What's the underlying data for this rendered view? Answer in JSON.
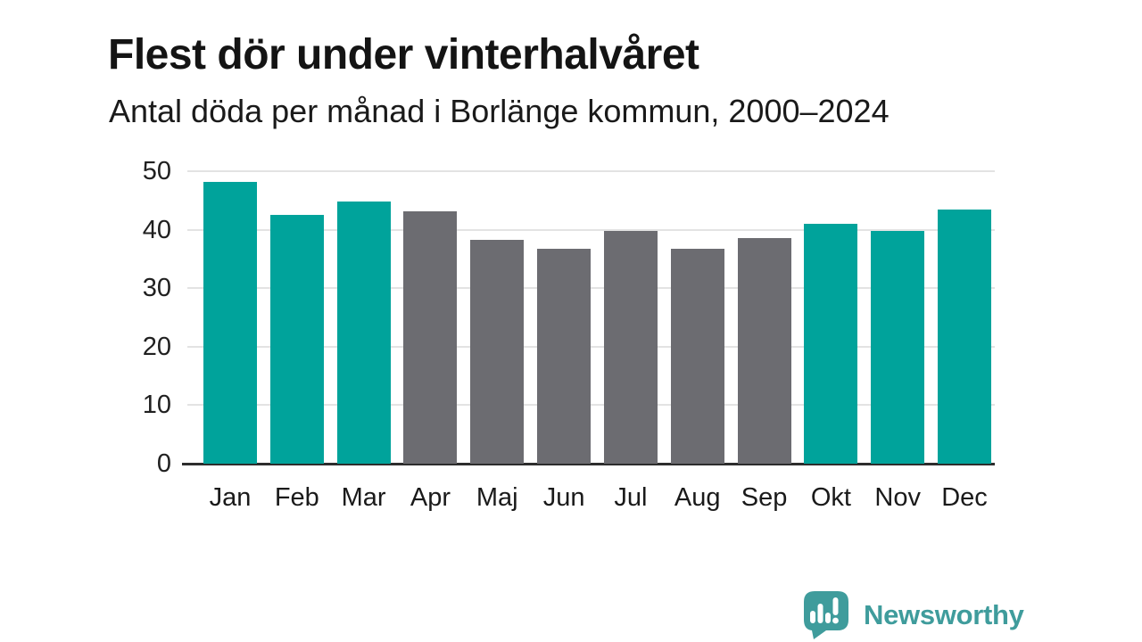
{
  "chart": {
    "title": "Flest dör under vinterhalvåret",
    "subtitle": "Antal döda per månad i Borlänge kommun, 2000–2024"
  },
  "chart_data": {
    "type": "bar",
    "categories": [
      "Jan",
      "Feb",
      "Mar",
      "Apr",
      "Maj",
      "Jun",
      "Jul",
      "Aug",
      "Sep",
      "Okt",
      "Nov",
      "Dec"
    ],
    "values": [
      48.2,
      42.5,
      44.8,
      43.2,
      38.3,
      36.7,
      39.8,
      36.8,
      38.6,
      41.0,
      39.8,
      43.5
    ],
    "bar_color_keys": [
      "teal",
      "teal",
      "teal",
      "gray",
      "gray",
      "gray",
      "gray",
      "gray",
      "gray",
      "teal",
      "teal",
      "teal"
    ],
    "colors": {
      "teal": "#00a39b",
      "gray": "#6c6c71"
    },
    "title": "Flest dör under vinterhalvåret",
    "subtitle": "Antal döda per månad i Borlänge kommun, 2000–2024",
    "xlabel": "",
    "ylabel": "",
    "yticks": [
      0,
      10,
      20,
      30,
      40,
      50
    ],
    "ylim": [
      0,
      50
    ],
    "grid": true,
    "legend": "none"
  },
  "footer": {
    "logo_text": "Newsworthy",
    "logo_color": "#3f9c9c",
    "logo_icon": "speech-bubble-bar-chart-exclamation-icon"
  }
}
